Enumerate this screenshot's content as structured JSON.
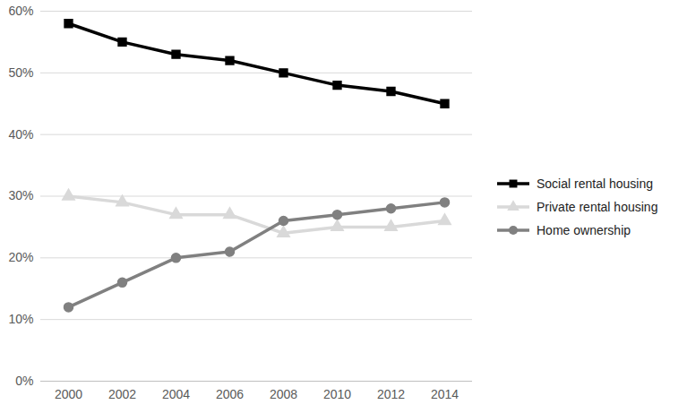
{
  "chart_data": {
    "type": "line",
    "categories": [
      "2000",
      "2002",
      "2004",
      "2006",
      "2008",
      "2010",
      "2012",
      "2014"
    ],
    "series": [
      {
        "name": "Social rental housing",
        "color": "#000000",
        "marker": "square",
        "line_style": "solid",
        "values": [
          58,
          55,
          53,
          52,
          50,
          48,
          47,
          45
        ]
      },
      {
        "name": "Private rental housing",
        "color": "#d9d9d9",
        "marker": "triangle",
        "line_style": "solid",
        "values": [
          30,
          29,
          27,
          27,
          24,
          25,
          25,
          26
        ]
      },
      {
        "name": "Home ownership",
        "color": "#808080",
        "marker": "circle",
        "line_style": "solid",
        "values": [
          12,
          16,
          20,
          21,
          26,
          27,
          28,
          29
        ]
      }
    ],
    "ylim": [
      0,
      60
    ],
    "yticks": [
      {
        "value": 0,
        "label": "0%"
      },
      {
        "value": 10,
        "label": "10%"
      },
      {
        "value": 20,
        "label": "20%"
      },
      {
        "value": 30,
        "label": "30%"
      },
      {
        "value": 40,
        "label": "40%"
      },
      {
        "value": 50,
        "label": "50%"
      },
      {
        "value": 60,
        "label": "60%"
      }
    ],
    "grid": true,
    "legend": "right"
  }
}
